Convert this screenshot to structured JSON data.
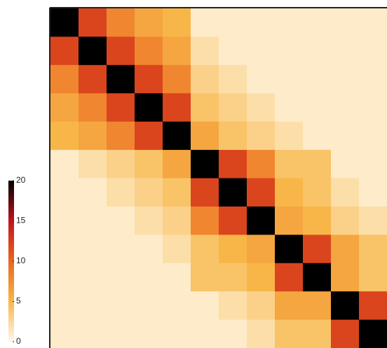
{
  "chart_data": {
    "type": "heatmap",
    "matrix": [
      [
        20,
        12,
        8,
        6,
        5,
        1,
        1,
        1,
        1,
        1,
        1,
        1
      ],
      [
        12,
        20,
        12,
        8,
        6,
        2,
        1,
        1,
        1,
        1,
        1,
        1
      ],
      [
        8,
        12,
        20,
        12,
        8,
        3,
        2,
        1,
        1,
        1,
        1,
        1
      ],
      [
        6,
        8,
        12,
        20,
        12,
        4,
        3,
        2,
        1,
        1,
        1,
        1
      ],
      [
        5,
        6,
        8,
        12,
        20,
        6,
        4,
        3,
        2,
        1,
        1,
        1
      ],
      [
        1,
        2,
        3,
        4,
        6,
        20,
        12,
        8,
        4,
        4,
        1,
        1
      ],
      [
        1,
        1,
        2,
        3,
        4,
        12,
        20,
        12,
        5,
        4,
        2,
        1
      ],
      [
        1,
        1,
        1,
        2,
        3,
        8,
        12,
        20,
        6,
        5,
        3,
        2
      ],
      [
        1,
        1,
        1,
        1,
        2,
        4,
        5,
        6,
        20,
        12,
        6,
        4
      ],
      [
        1,
        1,
        1,
        1,
        1,
        4,
        4,
        5,
        12,
        20,
        6,
        4
      ],
      [
        1,
        1,
        1,
        1,
        1,
        1,
        2,
        3,
        6,
        6,
        20,
        12
      ],
      [
        1,
        1,
        1,
        1,
        1,
        1,
        1,
        2,
        4,
        4,
        12,
        20
      ]
    ],
    "zlim": [
      0,
      20
    ],
    "zticks": [
      0,
      5,
      10,
      15,
      20
    ],
    "colors": [
      "#fff8ea",
      "#f8b648",
      "#ea661e",
      "#c2141c",
      "#000000"
    ]
  }
}
